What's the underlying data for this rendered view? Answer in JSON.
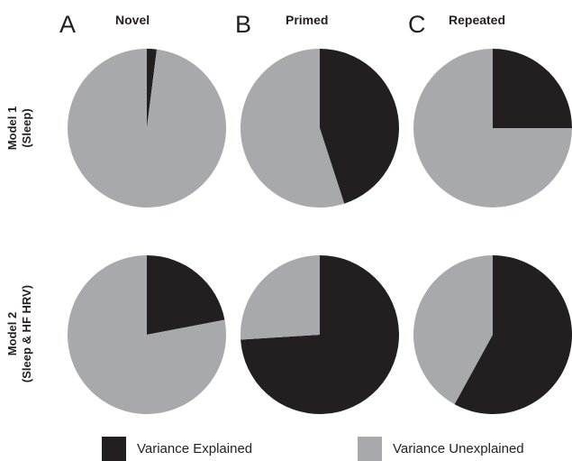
{
  "panels": {
    "letters": [
      "A",
      "B",
      "C"
    ],
    "titles": [
      "Novel",
      "Primed",
      "Repeated"
    ]
  },
  "rows": [
    {
      "line1": "Model 1",
      "line2": "(Sleep)"
    },
    {
      "line1": "Model 2",
      "line2": "(Sleep & HF HRV)"
    }
  ],
  "legend": {
    "explained": "Variance Explained",
    "unexplained": "Variance Unexplained"
  },
  "colors": {
    "explained": "#231f20",
    "unexplained": "#a7a9ac"
  },
  "chart_data": [
    {
      "type": "pie",
      "model": "Model 1 (Sleep)",
      "condition": "Novel",
      "labels": [
        "Variance Explained",
        "Variance Unexplained"
      ],
      "values": [
        0.02,
        0.98
      ]
    },
    {
      "type": "pie",
      "model": "Model 1 (Sleep)",
      "condition": "Primed",
      "labels": [
        "Variance Explained",
        "Variance Unexplained"
      ],
      "values": [
        0.45,
        0.55
      ]
    },
    {
      "type": "pie",
      "model": "Model 1 (Sleep)",
      "condition": "Repeated",
      "labels": [
        "Variance Explained",
        "Variance Unexplained"
      ],
      "values": [
        0.25,
        0.75
      ]
    },
    {
      "type": "pie",
      "model": "Model 2 (Sleep & HF HRV)",
      "condition": "Novel",
      "labels": [
        "Variance Explained",
        "Variance Unexplained"
      ],
      "values": [
        0.22,
        0.78
      ]
    },
    {
      "type": "pie",
      "model": "Model 2 (Sleep & HF HRV)",
      "condition": "Primed",
      "labels": [
        "Variance Explained",
        "Variance Unexplained"
      ],
      "values": [
        0.74,
        0.26
      ]
    },
    {
      "type": "pie",
      "model": "Model 2 (Sleep & HF HRV)",
      "condition": "Repeated",
      "labels": [
        "Variance Explained",
        "Variance Unexplained"
      ],
      "values": [
        0.58,
        0.42
      ]
    }
  ]
}
